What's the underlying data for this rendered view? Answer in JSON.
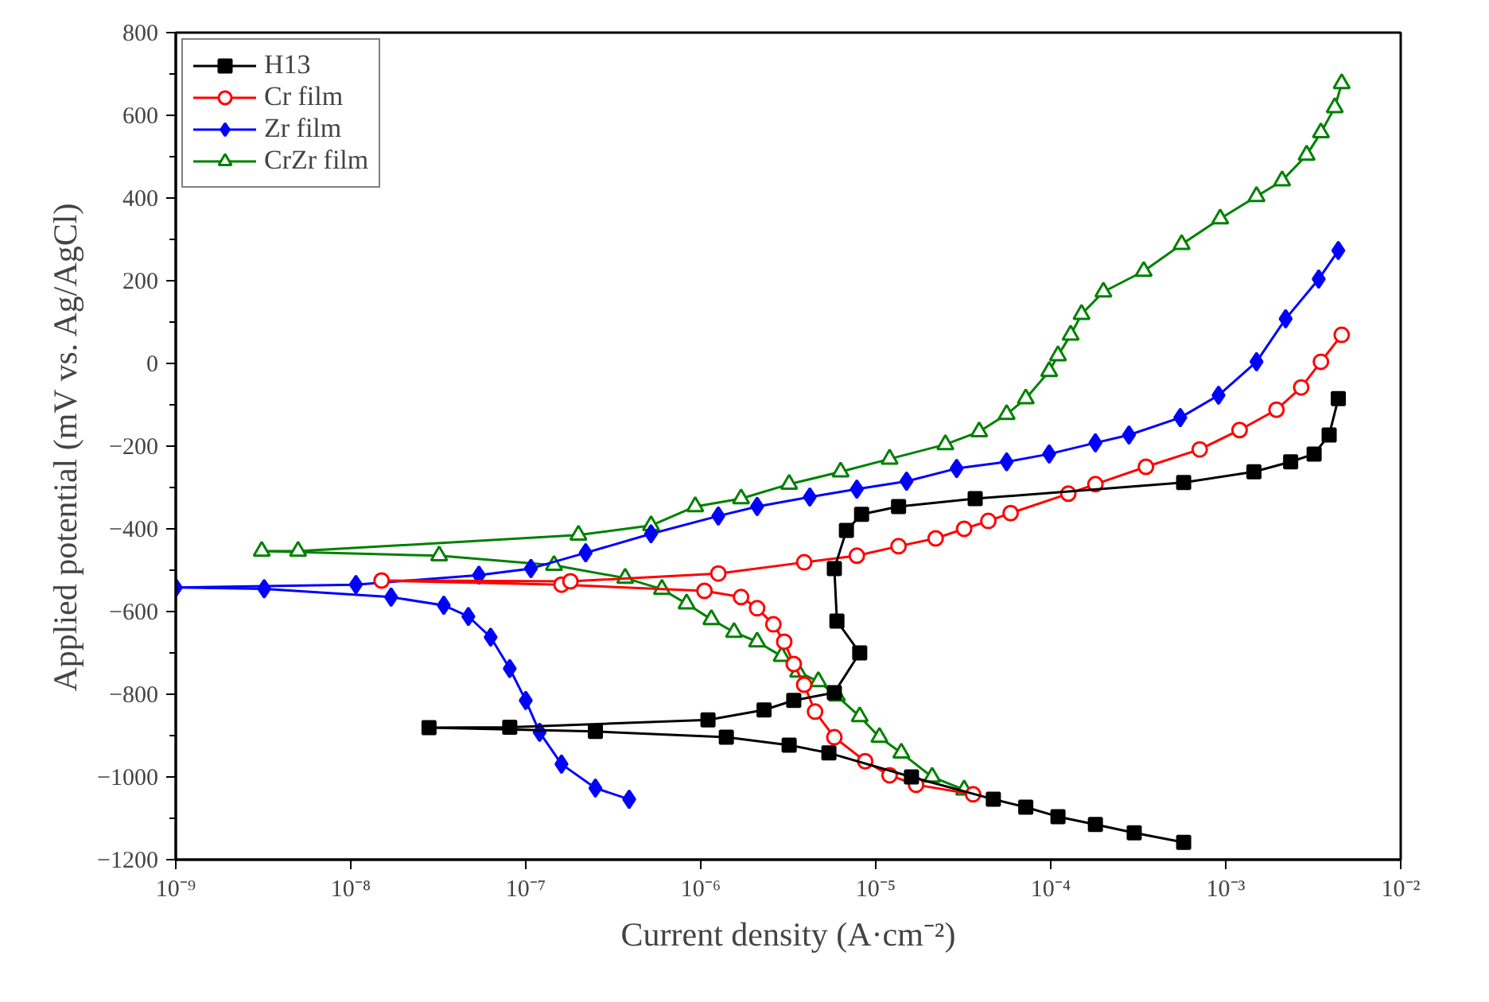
{
  "chart_data": {
    "type": "line",
    "xlabel": "Current density (A·cm⁻²)",
    "ylabel": "Applied potential (mV vs. Ag/AgCl)",
    "log": "x",
    "xlim": [
      1e-09,
      0.01
    ],
    "ylim": [
      -1200,
      800
    ],
    "xticks": [
      {
        "value": 1e-09,
        "label": "10⁻⁹"
      },
      {
        "value": 1e-08,
        "label": "10⁻⁸"
      },
      {
        "value": 1e-07,
        "label": "10⁻⁷"
      },
      {
        "value": 1e-06,
        "label": "10⁻⁶"
      },
      {
        "value": 1e-05,
        "label": "10⁻⁵"
      },
      {
        "value": 0.0001,
        "label": "10⁻⁴"
      },
      {
        "value": 0.001,
        "label": "10⁻³"
      },
      {
        "value": 0.01,
        "label": "10⁻²"
      }
    ],
    "yticks": [
      -1200,
      -1000,
      -800,
      -600,
      -400,
      -200,
      0,
      200,
      400,
      600,
      800
    ],
    "grid": false,
    "legend": "top left",
    "series": [
      {
        "name": "H13",
        "color": "#000000",
        "marker": "square",
        "x": [
          0.000575,
          0.0003,
          0.00018,
          0.00011,
          7.2e-05,
          4.7e-05,
          1.6e-05,
          5.4e-06,
          3.2e-06,
          1.4e-06,
          2.5e-07,
          2.8e-08,
          8.1e-08,
          1.1e-06,
          2.3e-06,
          3.4e-06,
          5.8e-06,
          8.1e-06,
          6e-06,
          5.8e-06,
          6.8e-06,
          8.3e-06,
          1.35e-05,
          3.7e-05,
          0.000575,
          0.00145,
          0.00235,
          0.0032,
          0.0039,
          0.0044
        ],
        "values": [
          -1158,
          -1135,
          -1115,
          -1096,
          -1073,
          -1054,
          -1000,
          -942,
          -923,
          -904,
          -890,
          -881,
          -880,
          -862,
          -838,
          -815,
          -796,
          -700,
          -623,
          -496,
          -404,
          -365,
          -346,
          -327,
          -288,
          -262,
          -238,
          -219,
          -173,
          -85
        ]
      },
      {
        "name": "Cr film",
        "color": "#ff0000",
        "marker": "circle",
        "x": [
          3.6e-05,
          1.7e-05,
          1.2e-05,
          8.7e-06,
          5.8e-06,
          4.5e-06,
          3.9e-06,
          3.4e-06,
          3e-06,
          2.6e-06,
          2.1e-06,
          1.7e-06,
          1.05e-06,
          1.6e-07,
          1.5e-08,
          1.8e-07,
          1.26e-06,
          3.9e-06,
          7.8e-06,
          1.35e-05,
          2.2e-05,
          3.2e-05,
          4.4e-05,
          5.9e-05,
          0.000126,
          0.00018,
          0.00035,
          0.00071,
          0.0012,
          0.00195,
          0.0027,
          0.0035,
          0.0046
        ],
        "values": [
          -1042,
          -1019,
          -996,
          -962,
          -904,
          -842,
          -777,
          -727,
          -673,
          -631,
          -592,
          -565,
          -550,
          -535,
          -525,
          -527,
          -508,
          -481,
          -465,
          -442,
          -423,
          -400,
          -381,
          -362,
          -315,
          -292,
          -250,
          -208,
          -161,
          -112,
          -58,
          4,
          69
        ]
      },
      {
        "name": "Zr film",
        "color": "#0000ff",
        "marker": "diamond",
        "x": [
          3.9e-07,
          2.5e-07,
          1.6e-07,
          1.2e-07,
          1e-07,
          8.1e-08,
          6.3e-08,
          4.7e-08,
          3.4e-08,
          1.7e-08,
          3.2e-09,
          1e-09,
          1.07e-08,
          5.4e-08,
          1.07e-07,
          2.2e-07,
          5.2e-07,
          1.26e-06,
          2.1e-06,
          4.2e-06,
          7.8e-06,
          1.5e-05,
          2.9e-05,
          5.6e-05,
          9.8e-05,
          0.00018,
          0.00028,
          0.00055,
          0.00091,
          0.0015,
          0.0022,
          0.0034,
          0.0044
        ],
        "values": [
          -1054,
          -1027,
          -969,
          -892,
          -815,
          -738,
          -662,
          -612,
          -585,
          -565,
          -545,
          -542,
          -535,
          -512,
          -496,
          -458,
          -412,
          -369,
          -346,
          -323,
          -304,
          -285,
          -254,
          -238,
          -219,
          -192,
          -173,
          -131,
          -77,
          4,
          108,
          204,
          273
        ]
      },
      {
        "name": "CrZr film",
        "color": "#008000",
        "marker": "triangle",
        "x": [
          3.2e-05,
          2.1e-05,
          1.4e-05,
          1.05e-05,
          8.1e-06,
          6e-06,
          4.7e-06,
          3.6e-06,
          2.9e-06,
          2.1e-06,
          1.55e-06,
          1.15e-06,
          8.3e-07,
          6e-07,
          3.7e-07,
          1.45e-07,
          3.2e-08,
          3.1e-09,
          5e-09,
          2e-07,
          5.2e-07,
          9.3e-07,
          1.7e-06,
          3.2e-06,
          6.3e-06,
          1.2e-05,
          2.5e-05,
          3.9e-05,
          5.6e-05,
          7.2e-05,
          9.8e-05,
          0.00011,
          0.00013,
          0.00015,
          0.0002,
          0.00034,
          0.00056,
          0.00093,
          0.0015,
          0.0021,
          0.0029,
          0.0035,
          0.0042,
          0.0046
        ],
        "values": [
          -1031,
          -1000,
          -942,
          -904,
          -854,
          -804,
          -769,
          -746,
          -708,
          -673,
          -650,
          -619,
          -581,
          -546,
          -519,
          -488,
          -465,
          -454,
          -454,
          -415,
          -392,
          -346,
          -327,
          -292,
          -262,
          -231,
          -196,
          -165,
          -123,
          -85,
          -19,
          19,
          69,
          119,
          173,
          223,
          288,
          350,
          404,
          442,
          504,
          558,
          619,
          677
        ]
      }
    ]
  }
}
